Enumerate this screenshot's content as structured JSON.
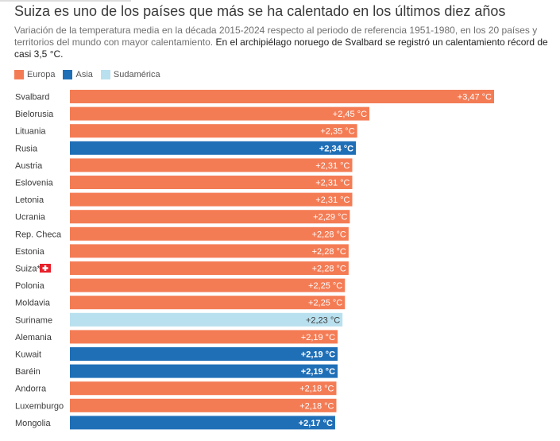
{
  "header": {
    "title": "Suiza es uno de los países que más se ha calentado en los últimos diez años",
    "subtitle_plain": "Variación de la temperatura media en la década 2015-2024 respecto al periodo de referencia 1951-1980, en los 20 países y territorios del mundo con mayor calentamiento.",
    "subtitle_bold": "En el archipiélago noruego de Svalbard se registró un calentamiento récord de casi 3,5 °C."
  },
  "legend": [
    {
      "label": "Europa",
      "color": "#f47c55"
    },
    {
      "label": "Asia",
      "color": "#1f6fb7"
    },
    {
      "label": "Sudamérica",
      "color": "#b9e0ee"
    }
  ],
  "chart_data": {
    "type": "bar",
    "orientation": "horizontal",
    "categories": [
      "Svalbard",
      "Bielorusia",
      "Lituania",
      "Rusia",
      "Austria",
      "Eslovenia",
      "Letonia",
      "Ucrania",
      "Rep. Checa",
      "Estonia",
      "Suiza*",
      "Polonia",
      "Moldavia",
      "Suriname",
      "Alemania",
      "Kuwait",
      "Baréin",
      "Andorra",
      "Luxemburgo",
      "Mongolia"
    ],
    "values": [
      3.47,
      2.45,
      2.35,
      2.34,
      2.31,
      2.31,
      2.31,
      2.29,
      2.28,
      2.28,
      2.28,
      2.25,
      2.25,
      2.23,
      2.19,
      2.19,
      2.19,
      2.18,
      2.18,
      2.17
    ],
    "value_labels": [
      "+3,47 °C",
      "+2,45 °C",
      "+2,35 °C",
      "+2,34 °C",
      "+2,31 °C",
      "+2,31 °C",
      "+2,31 °C",
      "+2,29 °C",
      "+2,28 °C",
      "+2,28 °C",
      "+2,28 °C",
      "+2,25 °C",
      "+2,25 °C",
      "+2,23 °C",
      "+2,19 °C",
      "+2,19 °C",
      "+2,19 °C",
      "+2,18 °C",
      "+2,18 °C",
      "+2,17 °C"
    ],
    "region": [
      "Europa",
      "Europa",
      "Europa",
      "Asia",
      "Europa",
      "Europa",
      "Europa",
      "Europa",
      "Europa",
      "Europa",
      "Europa",
      "Europa",
      "Europa",
      "Sudamérica",
      "Europa",
      "Asia",
      "Asia",
      "Europa",
      "Europa",
      "Asia"
    ],
    "flag_category": "Suiza*",
    "xlim": [
      0,
      3.47
    ],
    "grid": false
  }
}
